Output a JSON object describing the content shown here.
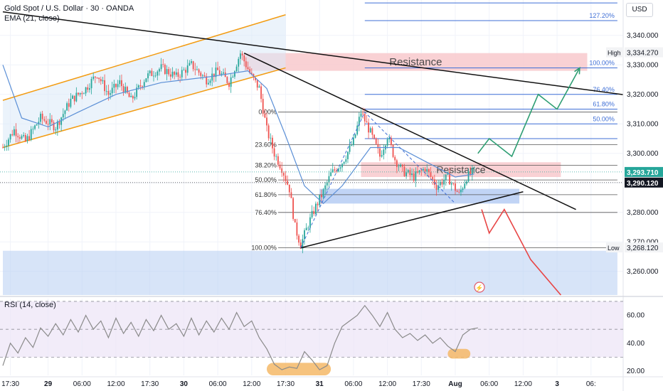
{
  "header": {
    "title": "Gold Spot / U.S. Dollar · 30 · OANDA",
    "ema_label": "EMA (21, close)"
  },
  "currency_button": "USD",
  "rsi_label": "RSI (14, close)",
  "colors": {
    "bull": "#26a69a",
    "bear": "#ef5350",
    "ema": "#5b8fd6",
    "channel": "#f39c12",
    "fib": "#3f6fd6",
    "resistance_fill": "#f8c9cc",
    "support_fill": "#b6cdf3",
    "rsi_line": "#8a8a8a",
    "rsi_bg": "#ece4f7",
    "price_tag_green": "#26a69a",
    "price_tag_dark": "#131722",
    "bull_path": "#2e9e73",
    "bear_path": "#e84545",
    "highlight": "#f5b867"
  },
  "chart_data": [
    {
      "type": "candlestick",
      "symbol": "XAUUSD",
      "timeframe": "30",
      "y_axis": {
        "range": [
          3252,
          3352
        ],
        "ticks": [
          3260,
          3270,
          3280,
          3290,
          3300,
          3310,
          3320,
          3330,
          3340
        ],
        "tick_labels": [
          "3,260.000",
          "3,270.000",
          "3,280.000",
          "3,290.000",
          "3,300.000",
          "3,310.000",
          "3,320.000",
          "3,330.000",
          "3,340.000"
        ]
      },
      "x_axis": {
        "labels": [
          "17:30",
          "29",
          "06:00",
          "12:00",
          "17:30",
          "30",
          "06:00",
          "12:00",
          "17:30",
          "31",
          "06:00",
          "12:00",
          "17:30",
          "Aug",
          "06:00",
          "12:00",
          "3",
          "06:"
        ],
        "label_bar_index": [
          4,
          24,
          42,
          60,
          78,
          96,
          114,
          132,
          150,
          168,
          186,
          204,
          222,
          240,
          258,
          276,
          294,
          312
        ]
      },
      "ohlc_anchors": [
        {
          "bar": 0,
          "price": 3302
        },
        {
          "bar": 6,
          "price": 3308
        },
        {
          "bar": 12,
          "price": 3304
        },
        {
          "bar": 20,
          "price": 3312
        },
        {
          "bar": 28,
          "price": 3309
        },
        {
          "bar": 36,
          "price": 3318
        },
        {
          "bar": 44,
          "price": 3322
        },
        {
          "bar": 50,
          "price": 3327
        },
        {
          "bar": 56,
          "price": 3320
        },
        {
          "bar": 62,
          "price": 3324
        },
        {
          "bar": 68,
          "price": 3318
        },
        {
          "bar": 76,
          "price": 3326
        },
        {
          "bar": 84,
          "price": 3329
        },
        {
          "bar": 92,
          "price": 3326
        },
        {
          "bar": 100,
          "price": 3330
        },
        {
          "bar": 108,
          "price": 3325
        },
        {
          "bar": 114,
          "price": 3328
        },
        {
          "bar": 120,
          "price": 3324
        },
        {
          "bar": 126,
          "price": 3334
        },
        {
          "bar": 132,
          "price": 3326
        },
        {
          "bar": 136,
          "price": 3322
        },
        {
          "bar": 140,
          "price": 3308
        },
        {
          "bar": 144,
          "price": 3300
        },
        {
          "bar": 148,
          "price": 3295
        },
        {
          "bar": 152,
          "price": 3288
        },
        {
          "bar": 155,
          "price": 3275
        },
        {
          "bar": 158,
          "price": 3269
        },
        {
          "bar": 162,
          "price": 3276
        },
        {
          "bar": 166,
          "price": 3282
        },
        {
          "bar": 170,
          "price": 3287
        },
        {
          "bar": 174,
          "price": 3293
        },
        {
          "bar": 180,
          "price": 3297
        },
        {
          "bar": 186,
          "price": 3304
        },
        {
          "bar": 190,
          "price": 3314
        },
        {
          "bar": 195,
          "price": 3307
        },
        {
          "bar": 200,
          "price": 3299
        },
        {
          "bar": 204,
          "price": 3306
        },
        {
          "bar": 208,
          "price": 3298
        },
        {
          "bar": 212,
          "price": 3294
        },
        {
          "bar": 218,
          "price": 3292
        },
        {
          "bar": 224,
          "price": 3295
        },
        {
          "bar": 230,
          "price": 3289
        },
        {
          "bar": 236,
          "price": 3292
        },
        {
          "bar": 242,
          "price": 3286
        },
        {
          "bar": 246,
          "price": 3292
        },
        {
          "bar": 250,
          "price": 3294
        }
      ],
      "ema_21": [
        {
          "bar": 0,
          "price": 3330
        },
        {
          "bar": 10,
          "price": 3312
        },
        {
          "bar": 24,
          "price": 3309
        },
        {
          "bar": 40,
          "price": 3314
        },
        {
          "bar": 60,
          "price": 3320
        },
        {
          "bar": 84,
          "price": 3324
        },
        {
          "bar": 110,
          "price": 3326
        },
        {
          "bar": 130,
          "price": 3328
        },
        {
          "bar": 140,
          "price": 3322
        },
        {
          "bar": 150,
          "price": 3306
        },
        {
          "bar": 160,
          "price": 3289
        },
        {
          "bar": 170,
          "price": 3283
        },
        {
          "bar": 180,
          "price": 3289
        },
        {
          "bar": 195,
          "price": 3302
        },
        {
          "bar": 210,
          "price": 3302
        },
        {
          "bar": 225,
          "price": 3297
        },
        {
          "bar": 240,
          "price": 3292
        },
        {
          "bar": 250,
          "price": 3293
        }
      ],
      "ascending_channel": {
        "upper": [
          {
            "bar": 0,
            "price": 3318
          },
          {
            "bar": 150,
            "price": 3347
          }
        ],
        "lower": [
          {
            "bar": 0,
            "price": 3302
          },
          {
            "bar": 150,
            "price": 3329
          }
        ],
        "label": ""
      },
      "trendlines": [
        {
          "name": "descending-resistance",
          "points": [
            {
              "bar": 0,
              "price": 3348
            },
            {
              "bar": 340,
              "price": 3319
            }
          ]
        },
        {
          "name": "triangle-upper",
          "points": [
            {
              "bar": 128,
              "price": 3334
            },
            {
              "bar": 304,
              "price": 3281
            }
          ]
        },
        {
          "name": "triangle-lower",
          "points": [
            {
              "bar": 158,
              "price": 3268
            },
            {
              "bar": 276,
              "price": 3287
            }
          ]
        }
      ],
      "zones": [
        {
          "name": "upper-resistance",
          "label": "Resistance",
          "price_from": 3328,
          "price_to": 3334,
          "bar_from": 128,
          "bar_to": 310
        },
        {
          "name": "mid-resistance",
          "label": "Resistance",
          "price_from": 3292,
          "price_to": 3297,
          "bar_from": 190,
          "bar_to": 296
        },
        {
          "name": "support",
          "label": "",
          "price_from": 3283,
          "price_to": 3288,
          "bar_from": 168,
          "bar_to": 274
        },
        {
          "name": "lower-demand",
          "label": "",
          "price_from": 3252,
          "price_to": 3267,
          "bar_from": 0,
          "bar_to": 326
        }
      ],
      "fib_right": {
        "bar_from": 192,
        "bar_to": 326,
        "levels": [
          {
            "label": "127.20%",
            "price": 3345
          },
          {
            "label": "100.00%",
            "price": 3329
          },
          {
            "label": "76.40%",
            "price": 3320
          },
          {
            "label": "61.80%",
            "price": 3315
          },
          {
            "label": "50.00%",
            "price": 3310
          },
          {
            "label": "",
            "price": 3305
          }
        ],
        "top_line_price": 3351
      },
      "fib_left": {
        "bar_from": 146,
        "bar_to": 326,
        "levels": [
          {
            "label": "0.00%",
            "price": 3314
          },
          {
            "label": "23.60%",
            "price": 3303
          },
          {
            "label": "38.20%",
            "price": 3296
          },
          {
            "label": "50.00%",
            "price": 3291
          },
          {
            "label": "61.80%",
            "price": 3286
          },
          {
            "label": "76.40%",
            "price": 3280
          },
          {
            "label": "100.00%",
            "price": 3268
          }
        ]
      },
      "wave_dashed": [
        {
          "bar": 158,
          "price": 3268
        },
        {
          "bar": 192,
          "price": 3314
        },
        {
          "bar": 240,
          "price": 3283
        }
      ],
      "projection_bull": [
        {
          "bar": 252,
          "price": 3300
        },
        {
          "bar": 258,
          "price": 3305
        },
        {
          "bar": 270,
          "price": 3299
        },
        {
          "bar": 284,
          "price": 3320
        },
        {
          "bar": 294,
          "price": 3315
        },
        {
          "bar": 306,
          "price": 3329
        }
      ],
      "projection_bear": [
        {
          "bar": 254,
          "price": 3281
        },
        {
          "bar": 258,
          "price": 3273
        },
        {
          "bar": 266,
          "price": 3281
        },
        {
          "bar": 280,
          "price": 3264
        },
        {
          "bar": 296,
          "price": 3252
        }
      ],
      "projection_bull_end_arrow": true,
      "price_tags": [
        {
          "label": "3,334.270",
          "price": 3334.27,
          "tag": "High",
          "style": "light"
        },
        {
          "label": "3,293.710",
          "price": 3293.71,
          "tag": "",
          "style": "green"
        },
        {
          "label": "3,290.120",
          "price": 3290.12,
          "tag": "",
          "style": "dark"
        },
        {
          "label": "3,268.120",
          "price": 3268.12,
          "tag": "Low",
          "style": "light"
        }
      ]
    },
    {
      "type": "line",
      "name": "RSI (14, close)",
      "y_axis": {
        "range": [
          17,
          72
        ],
        "ticks": [
          20,
          40,
          60
        ],
        "tick_labels": [
          "20.00",
          "40.00",
          "60.00"
        ],
        "bands": [
          30,
          50,
          70
        ]
      },
      "values": [
        {
          "bar": 0,
          "v": 24
        },
        {
          "bar": 4,
          "v": 40
        },
        {
          "bar": 8,
          "v": 33
        },
        {
          "bar": 12,
          "v": 44
        },
        {
          "bar": 16,
          "v": 37
        },
        {
          "bar": 20,
          "v": 51
        },
        {
          "bar": 24,
          "v": 45
        },
        {
          "bar": 28,
          "v": 54
        },
        {
          "bar": 32,
          "v": 46
        },
        {
          "bar": 36,
          "v": 57
        },
        {
          "bar": 40,
          "v": 48
        },
        {
          "bar": 44,
          "v": 60
        },
        {
          "bar": 48,
          "v": 50
        },
        {
          "bar": 52,
          "v": 56
        },
        {
          "bar": 56,
          "v": 44
        },
        {
          "bar": 60,
          "v": 58
        },
        {
          "bar": 64,
          "v": 47
        },
        {
          "bar": 68,
          "v": 55
        },
        {
          "bar": 72,
          "v": 45
        },
        {
          "bar": 76,
          "v": 57
        },
        {
          "bar": 80,
          "v": 49
        },
        {
          "bar": 84,
          "v": 60
        },
        {
          "bar": 88,
          "v": 50
        },
        {
          "bar": 92,
          "v": 54
        },
        {
          "bar": 96,
          "v": 45
        },
        {
          "bar": 100,
          "v": 58
        },
        {
          "bar": 104,
          "v": 46
        },
        {
          "bar": 108,
          "v": 56
        },
        {
          "bar": 112,
          "v": 48
        },
        {
          "bar": 116,
          "v": 58
        },
        {
          "bar": 120,
          "v": 50
        },
        {
          "bar": 124,
          "v": 62
        },
        {
          "bar": 128,
          "v": 52
        },
        {
          "bar": 132,
          "v": 56
        },
        {
          "bar": 136,
          "v": 44
        },
        {
          "bar": 140,
          "v": 36
        },
        {
          "bar": 144,
          "v": 25
        },
        {
          "bar": 148,
          "v": 21
        },
        {
          "bar": 152,
          "v": 23
        },
        {
          "bar": 156,
          "v": 22
        },
        {
          "bar": 160,
          "v": 34
        },
        {
          "bar": 164,
          "v": 28
        },
        {
          "bar": 168,
          "v": 21
        },
        {
          "bar": 172,
          "v": 24
        },
        {
          "bar": 176,
          "v": 40
        },
        {
          "bar": 180,
          "v": 52
        },
        {
          "bar": 184,
          "v": 56
        },
        {
          "bar": 188,
          "v": 60
        },
        {
          "bar": 192,
          "v": 67
        },
        {
          "bar": 196,
          "v": 60
        },
        {
          "bar": 200,
          "v": 52
        },
        {
          "bar": 204,
          "v": 62
        },
        {
          "bar": 208,
          "v": 50
        },
        {
          "bar": 212,
          "v": 44
        },
        {
          "bar": 216,
          "v": 47
        },
        {
          "bar": 220,
          "v": 42
        },
        {
          "bar": 224,
          "v": 46
        },
        {
          "bar": 228,
          "v": 40
        },
        {
          "bar": 232,
          "v": 44
        },
        {
          "bar": 236,
          "v": 38
        },
        {
          "bar": 240,
          "v": 34
        },
        {
          "bar": 244,
          "v": 46
        },
        {
          "bar": 248,
          "v": 50
        },
        {
          "bar": 252,
          "v": 51
        }
      ],
      "highlight_ovals": [
        {
          "bar_from": 140,
          "bar_to": 174,
          "v_from": 17,
          "v_to": 26
        },
        {
          "bar_from": 236,
          "bar_to": 248,
          "v_from": 29,
          "v_to": 36
        }
      ]
    }
  ]
}
